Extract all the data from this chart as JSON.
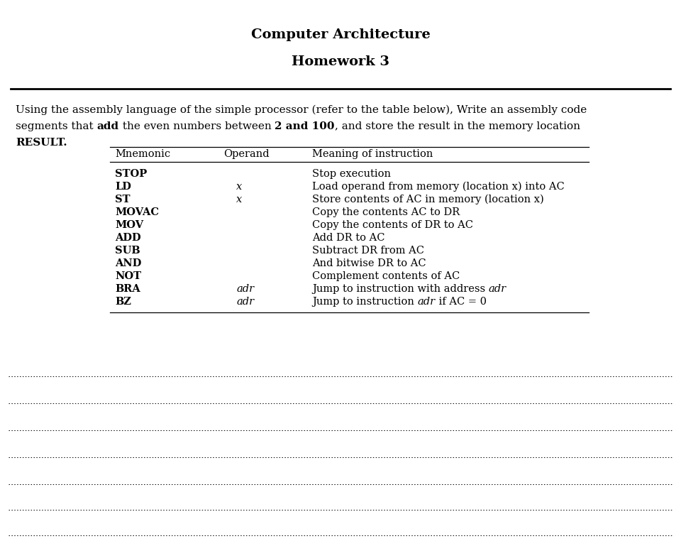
{
  "title1": "Computer Architecture",
  "title2": "Homework 3",
  "table_headers": [
    "Mnemonic",
    "Operand",
    "Meaning of instruction"
  ],
  "table_rows": [
    [
      "STOP",
      "",
      "Stop execution",
      false,
      false
    ],
    [
      "LD",
      "x",
      "Load operand from memory (location x) into AC",
      true,
      false
    ],
    [
      "ST",
      "x",
      "Store contents of AC in memory (location x)",
      true,
      false
    ],
    [
      "MOVAC",
      "",
      "Copy the contents AC to DR",
      false,
      false
    ],
    [
      "MOV",
      "",
      "Copy the contents of DR to AC",
      false,
      false
    ],
    [
      "ADD",
      "",
      "Add DR to AC",
      false,
      false
    ],
    [
      "SUB",
      "",
      "Subtract DR from AC",
      false,
      false
    ],
    [
      "AND",
      "",
      "And bitwise DR to AC",
      false,
      false
    ],
    [
      "NOT",
      "",
      "Complement contents of AC",
      false,
      false
    ],
    [
      "BRA",
      "adr",
      "Jump to instruction with address <adr>",
      false,
      true
    ],
    [
      "BZ",
      "adr",
      "Jump to instruction <adr> if AC = 0",
      false,
      true
    ]
  ],
  "num_dotted_lines": 7,
  "bg_color": "#ffffff",
  "text_color": "#000000",
  "title_fontsize": 14,
  "body_fontsize": 11,
  "table_fontsize": 10.5
}
